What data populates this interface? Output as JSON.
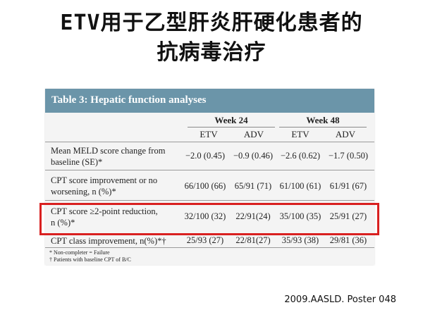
{
  "slide": {
    "title_line1": "ETV用于乙型肝炎肝硬化患者的",
    "title_line2": "抗病毒治疗",
    "citation": "2009.AASLD. Poster 048"
  },
  "table": {
    "caption": "Table 3: Hepatic function analyses",
    "weeks": [
      "Week 24",
      "Week 48"
    ],
    "drugs": [
      "ETV",
      "ADV",
      "ETV",
      "ADV"
    ],
    "rows": [
      {
        "label_line1": "Mean MELD score change from",
        "label_line2": "baseline (SE)*",
        "values": [
          "−2.0 (0.45)",
          "−0.9 (0.46)",
          "−2.6 (0.62)",
          "−1.7 (0.50)"
        ]
      },
      {
        "label_line1": "CPT score improvement or no",
        "label_line2": "worsening, n (%)*",
        "values": [
          "66/100 (66)",
          "65/91 (71)",
          "61/100 (61)",
          "61/91 (67)"
        ]
      },
      {
        "label_line1": "CPT score ≥2-point reduction,",
        "label_line2": "n (%)*",
        "values": [
          "32/100 (32)",
          "22/91(24)",
          "35/100 (35)",
          "25/91 (27)"
        ]
      },
      {
        "label_line1": "CPT class improvement, n(%)*†",
        "label_line2": "",
        "values": [
          "25/93 (27)",
          "22/81(27)",
          "35/93 (38)",
          "29/81 (36)"
        ]
      }
    ],
    "footnotes": [
      "* Non-completer = Failure",
      "† Patients with baseline CPT of B/C"
    ],
    "highlighted_row_index": 2,
    "colors": {
      "header_bar": "#6b95a9",
      "highlight_border": "#d92020"
    }
  }
}
